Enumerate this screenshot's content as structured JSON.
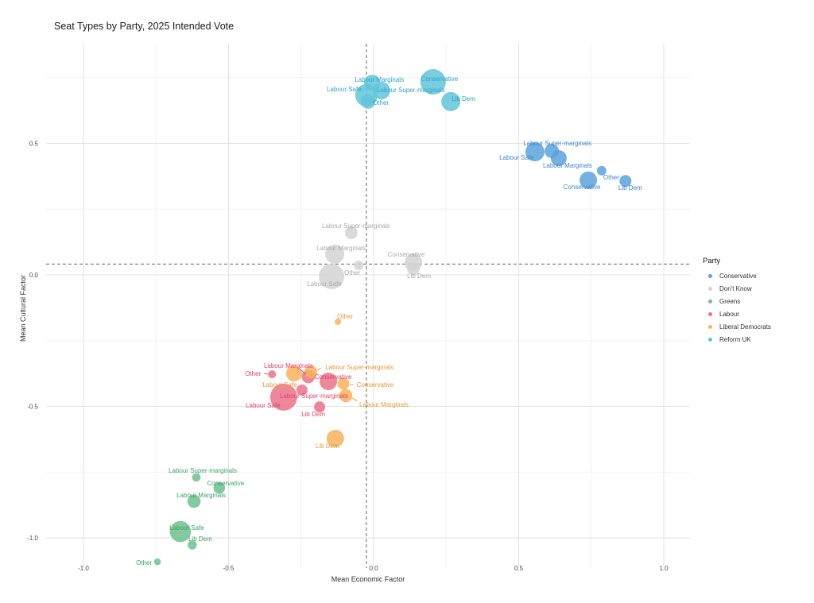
{
  "page": {
    "title": "Seat Types by Party, 2025 Intended Vote"
  },
  "chart_data": {
    "type": "scatter",
    "title": "Seat Types by Party, 2025 Intended Vote",
    "xlabel": "Mean Economic Factor",
    "ylabel": "Mean Cultural Factor",
    "xlim": [
      -1.13,
      1.09
    ],
    "ylim": [
      -1.12,
      0.88
    ],
    "x_ticks": [
      -1.0,
      -0.5,
      0.0,
      0.5,
      1.0
    ],
    "x_tick_labels": [
      "-1.0",
      "-0.5",
      "0.0",
      "0.5",
      "1.0"
    ],
    "y_ticks": [
      0.5,
      0.0,
      -0.5,
      -1.0
    ],
    "y_tick_labels": [
      "0.5",
      "0.0",
      "-0.5",
      "-1.0"
    ],
    "x_minor_ticks": [
      -0.75,
      -0.25,
      0.25,
      0.75
    ],
    "y_minor_ticks": [
      0.75,
      0.25,
      -0.25,
      -0.75
    ],
    "grid": "major+minor",
    "reference_lines": {
      "style": "dashed",
      "vertical_x": -0.025,
      "horizontal_y": 0.041
    },
    "legend": {
      "title": "Party",
      "position": "right"
    },
    "colors": {
      "grid_major": "#e3e3e3",
      "grid_minor": "#f2f2f2",
      "reference_line": "#666666",
      "tick_text": "#4d4d4d"
    },
    "series": [
      {
        "name": "Conservative",
        "color": "#5ca2db",
        "label_color": "#3e86cd",
        "points": [
          {
            "seat_type": "Labour Safe",
            "x": 0.556,
            "y": 0.468,
            "r": 12,
            "ldx": -23,
            "ldy": 7
          },
          {
            "seat_type": "Labour Super-marginals",
            "x": 0.614,
            "y": 0.471,
            "r": 9,
            "ldx": 7,
            "ldy": -10
          },
          {
            "seat_type": "Labour Marginals",
            "x": 0.638,
            "y": 0.444,
            "r": 10,
            "ldx": 11,
            "ldy": 9
          },
          {
            "seat_type": "Conservative",
            "x": 0.74,
            "y": 0.36,
            "r": 11,
            "ldx": -8,
            "ldy": 8
          },
          {
            "seat_type": "Other",
            "x": 0.786,
            "y": 0.396,
            "r": 6,
            "ldx": 12,
            "ldy": 8
          },
          {
            "seat_type": "Lib Dem",
            "x": 0.868,
            "y": 0.357,
            "r": 7.5,
            "ldx": 6,
            "ldy": 8
          }
        ]
      },
      {
        "name": "Don't Know",
        "color": "#d3d3d3",
        "label_color": "#ababab",
        "points": [
          {
            "seat_type": "Labour Super-marginals",
            "x": -0.077,
            "y": 0.16,
            "r": 8,
            "ldx": 6,
            "ldy": -9
          },
          {
            "seat_type": "Labour Marginals",
            "x": -0.134,
            "y": 0.079,
            "r": 12,
            "ldx": 8,
            "ldy": -8
          },
          {
            "seat_type": "Other",
            "x": -0.052,
            "y": 0.036,
            "r": 6,
            "ldx": -8,
            "ldy": 9
          },
          {
            "seat_type": "Labour Safe",
            "x": -0.145,
            "y": -0.006,
            "r": 16,
            "ldx": -9,
            "ldy": 9
          },
          {
            "seat_type": "Conservative",
            "x": 0.137,
            "y": 0.048,
            "r": 11,
            "ldx": -9,
            "ldy": -10
          },
          {
            "seat_type": "Lib Dem",
            "x": 0.137,
            "y": 0.024,
            "r": 8,
            "ldx": 7,
            "ldy": 9
          }
        ]
      },
      {
        "name": "Greens",
        "color": "#6fc08e",
        "label_color": "#3fa169",
        "points": [
          {
            "seat_type": "Labour Super-marginals",
            "x": -0.611,
            "y": -0.77,
            "r": 5.3,
            "ldx": 8,
            "ldy": -9
          },
          {
            "seat_type": "Conservative",
            "x": -0.532,
            "y": -0.81,
            "r": 7.3,
            "ldx": 8,
            "ldy": -6
          },
          {
            "seat_type": "Labour Marginals",
            "x": -0.619,
            "y": -0.861,
            "r": 8.3,
            "ldx": 9,
            "ldy": -8
          },
          {
            "seat_type": "Labour Safe",
            "x": -0.666,
            "y": -0.976,
            "r": 13.3,
            "ldx": 8,
            "ldy": -5
          },
          {
            "seat_type": "Lib Dem",
            "x": -0.625,
            "y": -1.027,
            "r": 5.7,
            "ldx": 10,
            "ldy": -8
          },
          {
            "seat_type": "Other",
            "x": -0.745,
            "y": -1.091,
            "r": 4.3,
            "ldx": -17,
            "ldy": 1
          }
        ]
      },
      {
        "name": "Labour",
        "color": "#ec7289",
        "label_color": "#e2436b",
        "points": [
          {
            "seat_type": "Other",
            "x": -0.35,
            "y": -0.378,
            "r": 5,
            "ldx": -24,
            "ldy": -1,
            "leader": [
              -10,
              -1,
              -5,
              0
            ]
          },
          {
            "seat_type": "Labour Marginals",
            "x": -0.225,
            "y": -0.387,
            "r": 8.3,
            "ldx": -25,
            "ldy": -14,
            "leader": [
              -10,
              -9,
              -3,
              -3
            ]
          },
          {
            "seat_type": "Conservative",
            "x": -0.156,
            "y": -0.405,
            "r": 11,
            "ldx": 6,
            "ldy": -6
          },
          {
            "seat_type": "Labour Super-marginals",
            "x": -0.247,
            "y": -0.438,
            "r": 7,
            "ldx": 15,
            "ldy": 7
          },
          {
            "seat_type": "Labour Safe",
            "x": -0.31,
            "y": -0.465,
            "r": 17,
            "ldx": -26,
            "ldy": 10
          },
          {
            "seat_type": "Lib Dem",
            "x": -0.186,
            "y": -0.502,
            "r": 7,
            "ldx": -8,
            "ldy": 9
          }
        ]
      },
      {
        "name": "Liberal Democrats",
        "color": "#f8b25c",
        "label_color": "#e89a36",
        "points": [
          {
            "seat_type": "Other",
            "x": -0.123,
            "y": -0.178,
            "r": 4,
            "ldx": 9,
            "ldy": -7
          },
          {
            "seat_type": "Labour Safe",
            "x": -0.274,
            "y": -0.375,
            "r": 10,
            "ldx": -18,
            "ldy": 14
          },
          {
            "seat_type": "Labour Super-marginals",
            "x": -0.216,
            "y": -0.369,
            "r": 8,
            "ldx": 61,
            "ldy": -6,
            "leader": [
              13,
              -5,
              8,
              -2
            ]
          },
          {
            "seat_type": "Conservative",
            "x": -0.104,
            "y": -0.414,
            "r": 7.5,
            "ldx": 40,
            "ldy": 1,
            "leader": [
              13,
              1,
              8,
              1
            ]
          },
          {
            "seat_type": "Labour Marginals",
            "x": -0.096,
            "y": -0.459,
            "r": 8.3,
            "ldx": 48,
            "ldy": 11,
            "leader": [
              14,
              7,
              8,
              3
            ]
          },
          {
            "seat_type": "Lib Dem",
            "x": -0.132,
            "y": -0.622,
            "r": 11,
            "ldx": -10,
            "ldy": 9
          }
        ]
      },
      {
        "name": "Reform UK",
        "color": "#62c4db",
        "label_color": "#2fa5c5",
        "points": [
          {
            "seat_type": "Labour Marginals",
            "x": -0.005,
            "y": 0.731,
            "r": 10,
            "ldx": 9,
            "ldy": -4
          },
          {
            "seat_type": "Labour Safe",
            "x": -0.025,
            "y": 0.683,
            "r": 14,
            "ldx": -28,
            "ldy": -8
          },
          {
            "seat_type": "Labour Super-marginals",
            "x": 0.027,
            "y": 0.701,
            "r": 11,
            "ldx": 37,
            "ldy": -1
          },
          {
            "seat_type": "Other",
            "x": -0.019,
            "y": 0.659,
            "r": 9,
            "ldx": 16,
            "ldy": 1
          },
          {
            "seat_type": "Conservative",
            "x": 0.205,
            "y": 0.734,
            "r": 16,
            "ldx": 8,
            "ldy": -4
          },
          {
            "seat_type": "Lib Dem",
            "x": 0.266,
            "y": 0.659,
            "r": 12,
            "ldx": 16,
            "ldy": -4
          }
        ]
      }
    ]
  }
}
